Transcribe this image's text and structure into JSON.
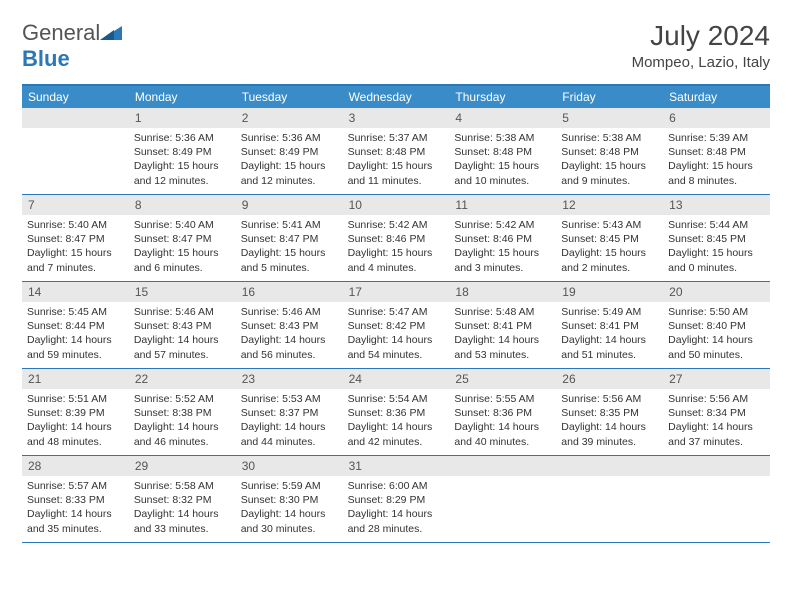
{
  "logo": {
    "text1": "General",
    "text2": "Blue"
  },
  "title": "July 2024",
  "location": "Mompeo, Lazio, Italy",
  "weekdays": [
    "Sunday",
    "Monday",
    "Tuesday",
    "Wednesday",
    "Thursday",
    "Friday",
    "Saturday"
  ],
  "colors": {
    "header_bg": "#3a8cc8",
    "border": "#2a78b8",
    "daynum_bg": "#e8e8e8",
    "text": "#333",
    "logo_gray": "#555",
    "logo_blue": "#2a78b8"
  },
  "weeks": [
    [
      {
        "n": "",
        "sunrise": "",
        "sunset": "",
        "daylight": ""
      },
      {
        "n": "1",
        "sunrise": "Sunrise: 5:36 AM",
        "sunset": "Sunset: 8:49 PM",
        "daylight": "Daylight: 15 hours and 12 minutes."
      },
      {
        "n": "2",
        "sunrise": "Sunrise: 5:36 AM",
        "sunset": "Sunset: 8:49 PM",
        "daylight": "Daylight: 15 hours and 12 minutes."
      },
      {
        "n": "3",
        "sunrise": "Sunrise: 5:37 AM",
        "sunset": "Sunset: 8:48 PM",
        "daylight": "Daylight: 15 hours and 11 minutes."
      },
      {
        "n": "4",
        "sunrise": "Sunrise: 5:38 AM",
        "sunset": "Sunset: 8:48 PM",
        "daylight": "Daylight: 15 hours and 10 minutes."
      },
      {
        "n": "5",
        "sunrise": "Sunrise: 5:38 AM",
        "sunset": "Sunset: 8:48 PM",
        "daylight": "Daylight: 15 hours and 9 minutes."
      },
      {
        "n": "6",
        "sunrise": "Sunrise: 5:39 AM",
        "sunset": "Sunset: 8:48 PM",
        "daylight": "Daylight: 15 hours and 8 minutes."
      }
    ],
    [
      {
        "n": "7",
        "sunrise": "Sunrise: 5:40 AM",
        "sunset": "Sunset: 8:47 PM",
        "daylight": "Daylight: 15 hours and 7 minutes."
      },
      {
        "n": "8",
        "sunrise": "Sunrise: 5:40 AM",
        "sunset": "Sunset: 8:47 PM",
        "daylight": "Daylight: 15 hours and 6 minutes."
      },
      {
        "n": "9",
        "sunrise": "Sunrise: 5:41 AM",
        "sunset": "Sunset: 8:47 PM",
        "daylight": "Daylight: 15 hours and 5 minutes."
      },
      {
        "n": "10",
        "sunrise": "Sunrise: 5:42 AM",
        "sunset": "Sunset: 8:46 PM",
        "daylight": "Daylight: 15 hours and 4 minutes."
      },
      {
        "n": "11",
        "sunrise": "Sunrise: 5:42 AM",
        "sunset": "Sunset: 8:46 PM",
        "daylight": "Daylight: 15 hours and 3 minutes."
      },
      {
        "n": "12",
        "sunrise": "Sunrise: 5:43 AM",
        "sunset": "Sunset: 8:45 PM",
        "daylight": "Daylight: 15 hours and 2 minutes."
      },
      {
        "n": "13",
        "sunrise": "Sunrise: 5:44 AM",
        "sunset": "Sunset: 8:45 PM",
        "daylight": "Daylight: 15 hours and 0 minutes."
      }
    ],
    [
      {
        "n": "14",
        "sunrise": "Sunrise: 5:45 AM",
        "sunset": "Sunset: 8:44 PM",
        "daylight": "Daylight: 14 hours and 59 minutes."
      },
      {
        "n": "15",
        "sunrise": "Sunrise: 5:46 AM",
        "sunset": "Sunset: 8:43 PM",
        "daylight": "Daylight: 14 hours and 57 minutes."
      },
      {
        "n": "16",
        "sunrise": "Sunrise: 5:46 AM",
        "sunset": "Sunset: 8:43 PM",
        "daylight": "Daylight: 14 hours and 56 minutes."
      },
      {
        "n": "17",
        "sunrise": "Sunrise: 5:47 AM",
        "sunset": "Sunset: 8:42 PM",
        "daylight": "Daylight: 14 hours and 54 minutes."
      },
      {
        "n": "18",
        "sunrise": "Sunrise: 5:48 AM",
        "sunset": "Sunset: 8:41 PM",
        "daylight": "Daylight: 14 hours and 53 minutes."
      },
      {
        "n": "19",
        "sunrise": "Sunrise: 5:49 AM",
        "sunset": "Sunset: 8:41 PM",
        "daylight": "Daylight: 14 hours and 51 minutes."
      },
      {
        "n": "20",
        "sunrise": "Sunrise: 5:50 AM",
        "sunset": "Sunset: 8:40 PM",
        "daylight": "Daylight: 14 hours and 50 minutes."
      }
    ],
    [
      {
        "n": "21",
        "sunrise": "Sunrise: 5:51 AM",
        "sunset": "Sunset: 8:39 PM",
        "daylight": "Daylight: 14 hours and 48 minutes."
      },
      {
        "n": "22",
        "sunrise": "Sunrise: 5:52 AM",
        "sunset": "Sunset: 8:38 PM",
        "daylight": "Daylight: 14 hours and 46 minutes."
      },
      {
        "n": "23",
        "sunrise": "Sunrise: 5:53 AM",
        "sunset": "Sunset: 8:37 PM",
        "daylight": "Daylight: 14 hours and 44 minutes."
      },
      {
        "n": "24",
        "sunrise": "Sunrise: 5:54 AM",
        "sunset": "Sunset: 8:36 PM",
        "daylight": "Daylight: 14 hours and 42 minutes."
      },
      {
        "n": "25",
        "sunrise": "Sunrise: 5:55 AM",
        "sunset": "Sunset: 8:36 PM",
        "daylight": "Daylight: 14 hours and 40 minutes."
      },
      {
        "n": "26",
        "sunrise": "Sunrise: 5:56 AM",
        "sunset": "Sunset: 8:35 PM",
        "daylight": "Daylight: 14 hours and 39 minutes."
      },
      {
        "n": "27",
        "sunrise": "Sunrise: 5:56 AM",
        "sunset": "Sunset: 8:34 PM",
        "daylight": "Daylight: 14 hours and 37 minutes."
      }
    ],
    [
      {
        "n": "28",
        "sunrise": "Sunrise: 5:57 AM",
        "sunset": "Sunset: 8:33 PM",
        "daylight": "Daylight: 14 hours and 35 minutes."
      },
      {
        "n": "29",
        "sunrise": "Sunrise: 5:58 AM",
        "sunset": "Sunset: 8:32 PM",
        "daylight": "Daylight: 14 hours and 33 minutes."
      },
      {
        "n": "30",
        "sunrise": "Sunrise: 5:59 AM",
        "sunset": "Sunset: 8:30 PM",
        "daylight": "Daylight: 14 hours and 30 minutes."
      },
      {
        "n": "31",
        "sunrise": "Sunrise: 6:00 AM",
        "sunset": "Sunset: 8:29 PM",
        "daylight": "Daylight: 14 hours and 28 minutes."
      },
      {
        "n": "",
        "sunrise": "",
        "sunset": "",
        "daylight": ""
      },
      {
        "n": "",
        "sunrise": "",
        "sunset": "",
        "daylight": ""
      },
      {
        "n": "",
        "sunrise": "",
        "sunset": "",
        "daylight": ""
      }
    ]
  ]
}
